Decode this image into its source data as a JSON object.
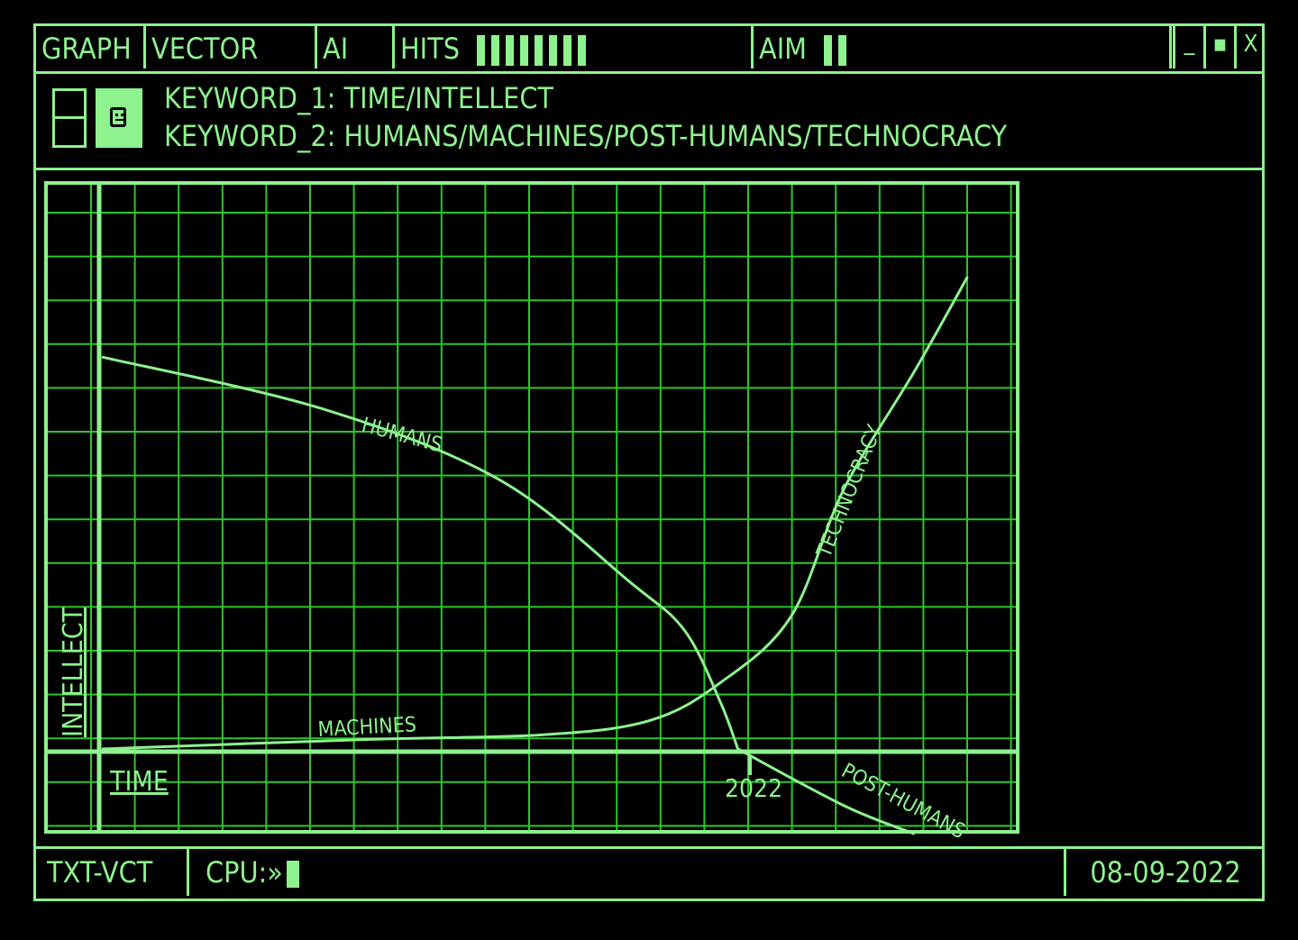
{
  "topbar": {
    "graph_label": "GRAPH",
    "vector_label": "VECTOR",
    "ai_label": "AI",
    "hits_label": "HITS",
    "hits_level": 8,
    "aim_label": "AIM",
    "aim_level": 2,
    "minimize_label": "_",
    "maximize_label": "▪",
    "close_label": "X"
  },
  "header": {
    "keyword_1": "KEYWORD_1: TIME/INTELLECT",
    "keyword_2": "KEYWORD_2: HUMANS/MACHINES/POST-HUMANS/TECHNOCRACY",
    "icons": [
      "panel-icon",
      "robot-icon"
    ]
  },
  "bottombar": {
    "mode": "TXT-VCT",
    "cpu_label": "CPU:»",
    "date": "08-09-2022"
  },
  "colors": {
    "accent": "#8ef28e",
    "grid": "#2cc62c",
    "background": "#000000"
  },
  "chart_data": {
    "type": "line",
    "xlabel": "TIME",
    "ylabel": "INTELLECT",
    "x_marker": "2022",
    "grid": true,
    "series": [
      {
        "name": "HUMANS",
        "points": [
          [
            0,
            0.83
          ],
          [
            0.25,
            0.72
          ],
          [
            0.45,
            0.57
          ],
          [
            0.6,
            0.35
          ],
          [
            0.66,
            0.25
          ],
          [
            0.7,
            0.1
          ],
          [
            0.72,
            0.0
          ]
        ]
      },
      {
        "name": "MACHINES",
        "points": [
          [
            0,
            0.0
          ],
          [
            0.3,
            0.02
          ],
          [
            0.5,
            0.03
          ],
          [
            0.62,
            0.06
          ],
          [
            0.7,
            0.14
          ],
          [
            0.78,
            0.28
          ],
          [
            0.84,
            0.55
          ],
          [
            0.92,
            0.8
          ],
          [
            0.98,
            1.0
          ]
        ]
      },
      {
        "name": "TECHNOCRACY",
        "points": [
          [
            0.78,
            0.28
          ],
          [
            0.84,
            0.55
          ],
          [
            0.92,
            0.8
          ],
          [
            0.98,
            1.0
          ]
        ]
      },
      {
        "name": "POST-HUMANS",
        "points": [
          [
            0.72,
            0.0
          ],
          [
            0.84,
            -0.12
          ],
          [
            0.92,
            -0.18
          ]
        ]
      }
    ]
  }
}
